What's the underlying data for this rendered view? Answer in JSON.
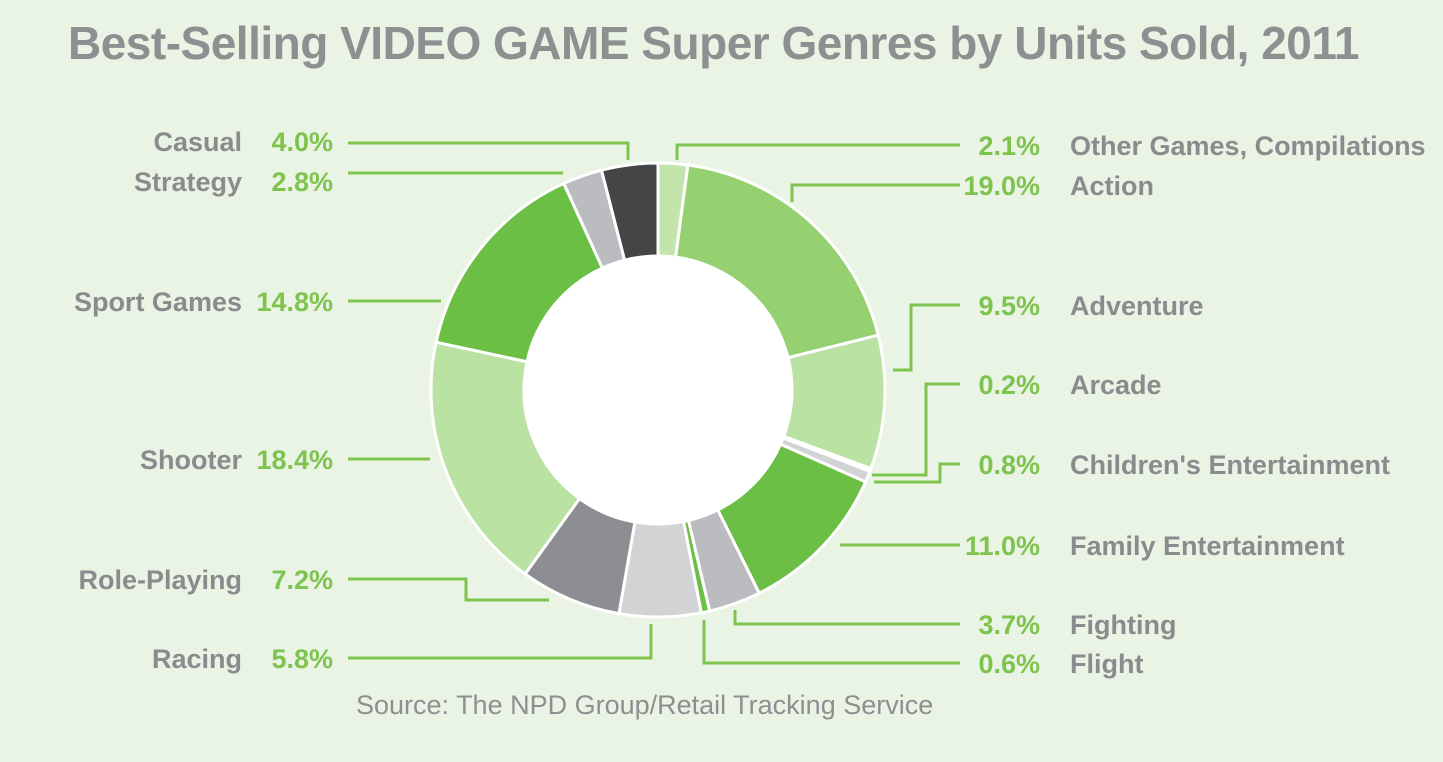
{
  "title": "Best-Selling VIDEO GAME Super Genres by Units Sold, 2011",
  "source": "Source: The NPD Group/Retail Tracking Service",
  "chart_data": {
    "type": "pie",
    "style": "donut",
    "title": "Best-Selling VIDEO GAME Super Genres by Units Sold, 2011",
    "unit": "%",
    "slices": [
      {
        "label": "Other Games, Compilations",
        "value": 2.1,
        "display": "2.1%",
        "color": "#c3e5ab"
      },
      {
        "label": "Action",
        "value": 19.0,
        "display": "19.0%",
        "color": "#95d170"
      },
      {
        "label": "Adventure",
        "value": 9.5,
        "display": "9.5%",
        "color": "#bae2a2"
      },
      {
        "label": "Arcade",
        "value": 0.2,
        "display": "0.2%",
        "color": "#8c8e91"
      },
      {
        "label": "Children's Entertainment",
        "value": 0.8,
        "display": "0.8%",
        "color": "#d2d3d5"
      },
      {
        "label": "Family Entertainment",
        "value": 11.0,
        "display": "11.0%",
        "color": "#6cbf45"
      },
      {
        "label": "Fighting",
        "value": 3.7,
        "display": "3.7%",
        "color": "#bbbcbf"
      },
      {
        "label": "Flight",
        "value": 0.6,
        "display": "0.6%",
        "color": "#6cbf45"
      },
      {
        "label": "Racing",
        "value": 5.8,
        "display": "5.8%",
        "color": "#d2d3d5"
      },
      {
        "label": "Role-Playing",
        "value": 7.2,
        "display": "7.2%",
        "color": "#8c8e91"
      },
      {
        "label": "Shooter",
        "value": 18.4,
        "display": "18.4%",
        "color": "#bae2a2"
      },
      {
        "label": "Sport Games",
        "value": 14.8,
        "display": "14.8%",
        "color": "#6cbf45"
      },
      {
        "label": "Strategy",
        "value": 2.8,
        "display": "2.8%",
        "color": "#bbbcbf"
      },
      {
        "label": "Casual",
        "value": 4.0,
        "display": "4.0%",
        "color": "#444547"
      }
    ],
    "label_color_pct": "#7fc34f",
    "label_color_name": "#8a8b8d",
    "leader_color": "#7fc34f"
  }
}
